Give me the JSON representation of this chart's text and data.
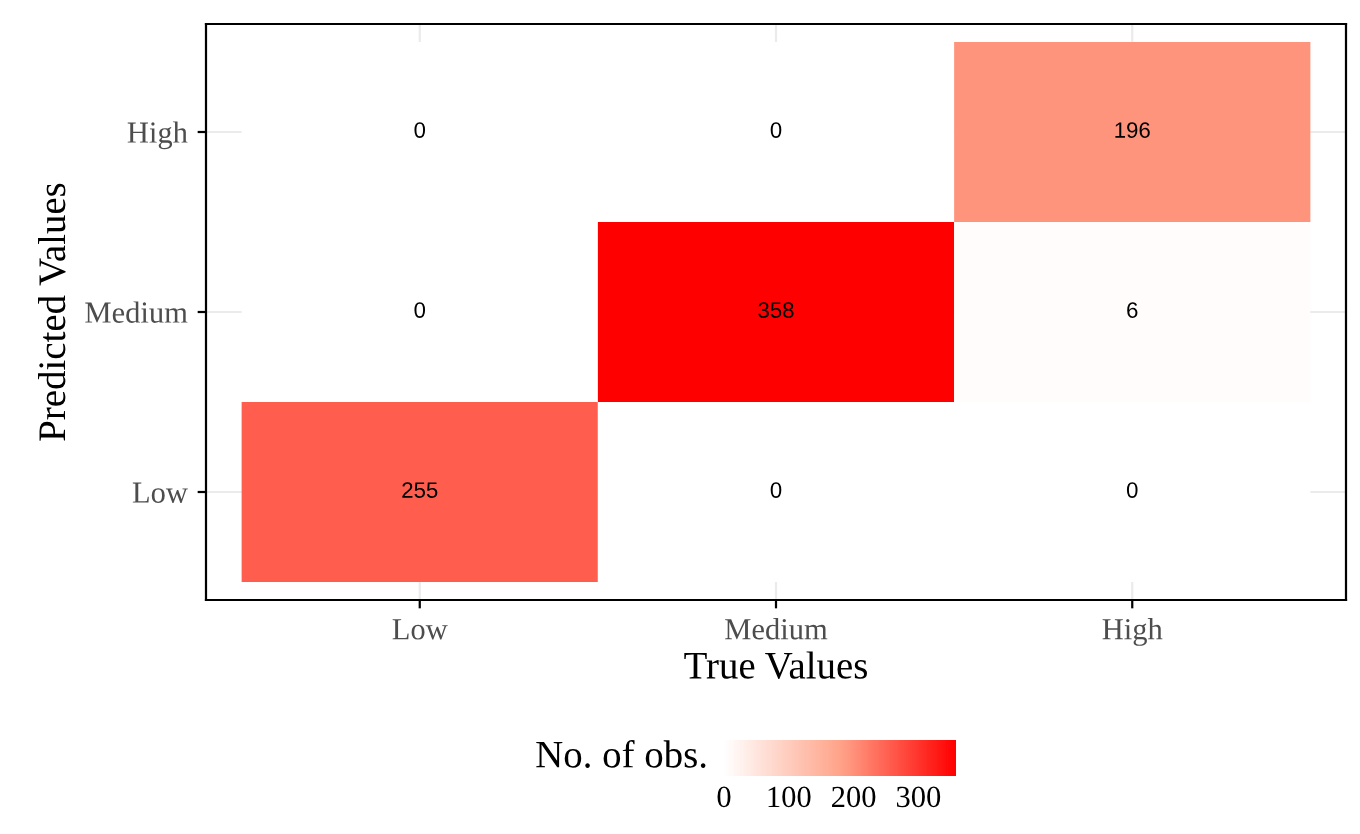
{
  "chart_data": {
    "type": "heatmap",
    "xlabel": "True Values",
    "ylabel": "Predicted Values",
    "clabel": "No. of obs.",
    "categories": [
      "Low",
      "Medium",
      "High"
    ],
    "y_categories": [
      "High",
      "Medium",
      "Low"
    ],
    "cells": [
      [
        0,
        0,
        196
      ],
      [
        0,
        358,
        6
      ],
      [
        255,
        0,
        0
      ]
    ],
    "clim": [
      0,
      358
    ],
    "cticks": [
      0,
      100,
      200,
      300
    ],
    "colors": [
      "#ffffff",
      "#ffa48a",
      "#ff0000"
    ],
    "data_labels": true,
    "grid": true
  }
}
